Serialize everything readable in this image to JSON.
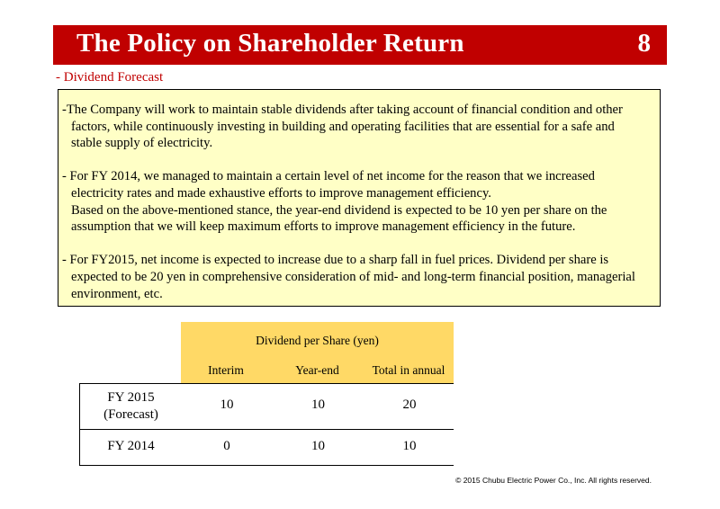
{
  "header": {
    "title": "The Policy on Shareholder Return",
    "page_number": "8",
    "bar_color": "#c00000"
  },
  "subtitle": "- Dividend Forecast",
  "note": {
    "background": "#ffffc6",
    "paragraphs": [
      {
        "lines": [
          "-The Company will work to maintain stable dividends after taking account of financial condition and other",
          "factors, while continuously investing in building and operating facilities that are essential for a safe and",
          "stable supply of electricity."
        ]
      },
      {
        "lines": [
          "- For FY 2014, we managed to maintain a certain level of net income for the reason that we increased",
          "electricity rates and made exhaustive efforts to improve management efficiency.",
          "Based on the above-mentioned stance, the year-end dividend is expected to be 10 yen per share on the",
          "assumption that we will keep maximum efforts to improve management efficiency in the future."
        ]
      },
      {
        "lines": [
          "- For FY2015, net income is expected to increase due to a sharp fall in fuel prices. Dividend per share is",
          "expected to be 20 yen in comprehensive consideration of mid- and long-term financial position, managerial",
          "environment, etc."
        ]
      }
    ]
  },
  "table": {
    "header_color": "#ffd966",
    "group_label": "Dividend per Share (yen)",
    "columns": [
      "Interim",
      "Year-end",
      "Total in annual"
    ],
    "rows": [
      {
        "label_lines": [
          "FY 2015",
          "(Forecast)"
        ],
        "values": [
          "10",
          "10",
          "20"
        ]
      },
      {
        "label_lines": [
          "FY 2014"
        ],
        "values": [
          "0",
          "10",
          "10"
        ]
      }
    ]
  },
  "footer": {
    "copyright": "© 2015 Chubu Electric Power Co., Inc. All rights reserved."
  }
}
